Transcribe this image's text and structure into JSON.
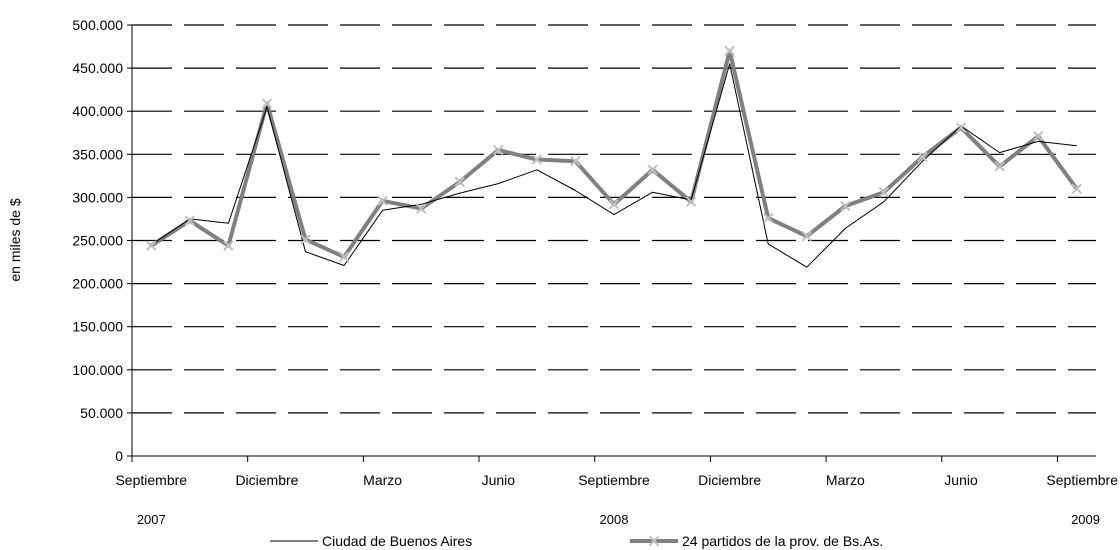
{
  "chart_data": {
    "type": "line",
    "ylabel": "en miles de $",
    "xlabel": "",
    "ylim": [
      0,
      500000
    ],
    "y_ticks": [
      0,
      50000,
      100000,
      150000,
      200000,
      250000,
      300000,
      350000,
      400000,
      450000,
      500000
    ],
    "y_tick_labels": [
      "0",
      "50.000",
      "100.000",
      "150.000",
      "200.000",
      "250.000",
      "300.000",
      "350.000",
      "400.000",
      "450.000",
      "500.000"
    ],
    "x": [
      "Sep 2007",
      "Oct 2007",
      "Nov 2007",
      "Dic 2007",
      "Ene 2008",
      "Feb 2008",
      "Mar 2008",
      "Abr 2008",
      "May 2008",
      "Jun 2008",
      "Jul 2008",
      "Ago 2008",
      "Sep 2008",
      "Oct 2008",
      "Nov 2008",
      "Dic 2008",
      "Ene 2009",
      "Feb 2009",
      "Mar 2009",
      "Abr 2009",
      "May 2009",
      "Jun 2009",
      "Jul 2009",
      "Ago 2009",
      "Sep 2009"
    ],
    "x_tick_labels": [
      {
        "index": 0,
        "label": "Septiembre"
      },
      {
        "index": 3,
        "label": "Diciembre"
      },
      {
        "index": 6,
        "label": "Marzo"
      },
      {
        "index": 9,
        "label": "Junio"
      },
      {
        "index": 12,
        "label": "Septiembre"
      },
      {
        "index": 15,
        "label": "Diciembre"
      },
      {
        "index": 18,
        "label": "Marzo"
      },
      {
        "index": 21,
        "label": "Junio"
      },
      {
        "index": 24,
        "label": "Septiembre"
      }
    ],
    "year_labels": [
      {
        "index": 0,
        "label": "2007"
      },
      {
        "index": 12,
        "label": "2008"
      },
      {
        "index": 24,
        "label": "2009"
      }
    ],
    "series": [
      {
        "name": "Ciudad de Buenos Aires",
        "color": "#000000",
        "values": [
          245000,
          275000,
          270000,
          405000,
          237000,
          221000,
          285000,
          292000,
          305000,
          316000,
          332000,
          308000,
          280000,
          306000,
          297000,
          455000,
          246000,
          219000,
          264000,
          295000,
          342000,
          383000,
          352000,
          365000,
          360000
        ]
      },
      {
        "name": "24 partidos de la prov. de Bs.As.",
        "color": "#808080",
        "values": [
          244000,
          273000,
          244000,
          409000,
          251000,
          231000,
          296000,
          287000,
          318000,
          355000,
          344000,
          342000,
          292000,
          332000,
          295000,
          470000,
          276000,
          255000,
          290000,
          306000,
          347000,
          381000,
          336000,
          371000,
          310000
        ]
      }
    ],
    "grid": true,
    "legend_position": "bottom"
  }
}
